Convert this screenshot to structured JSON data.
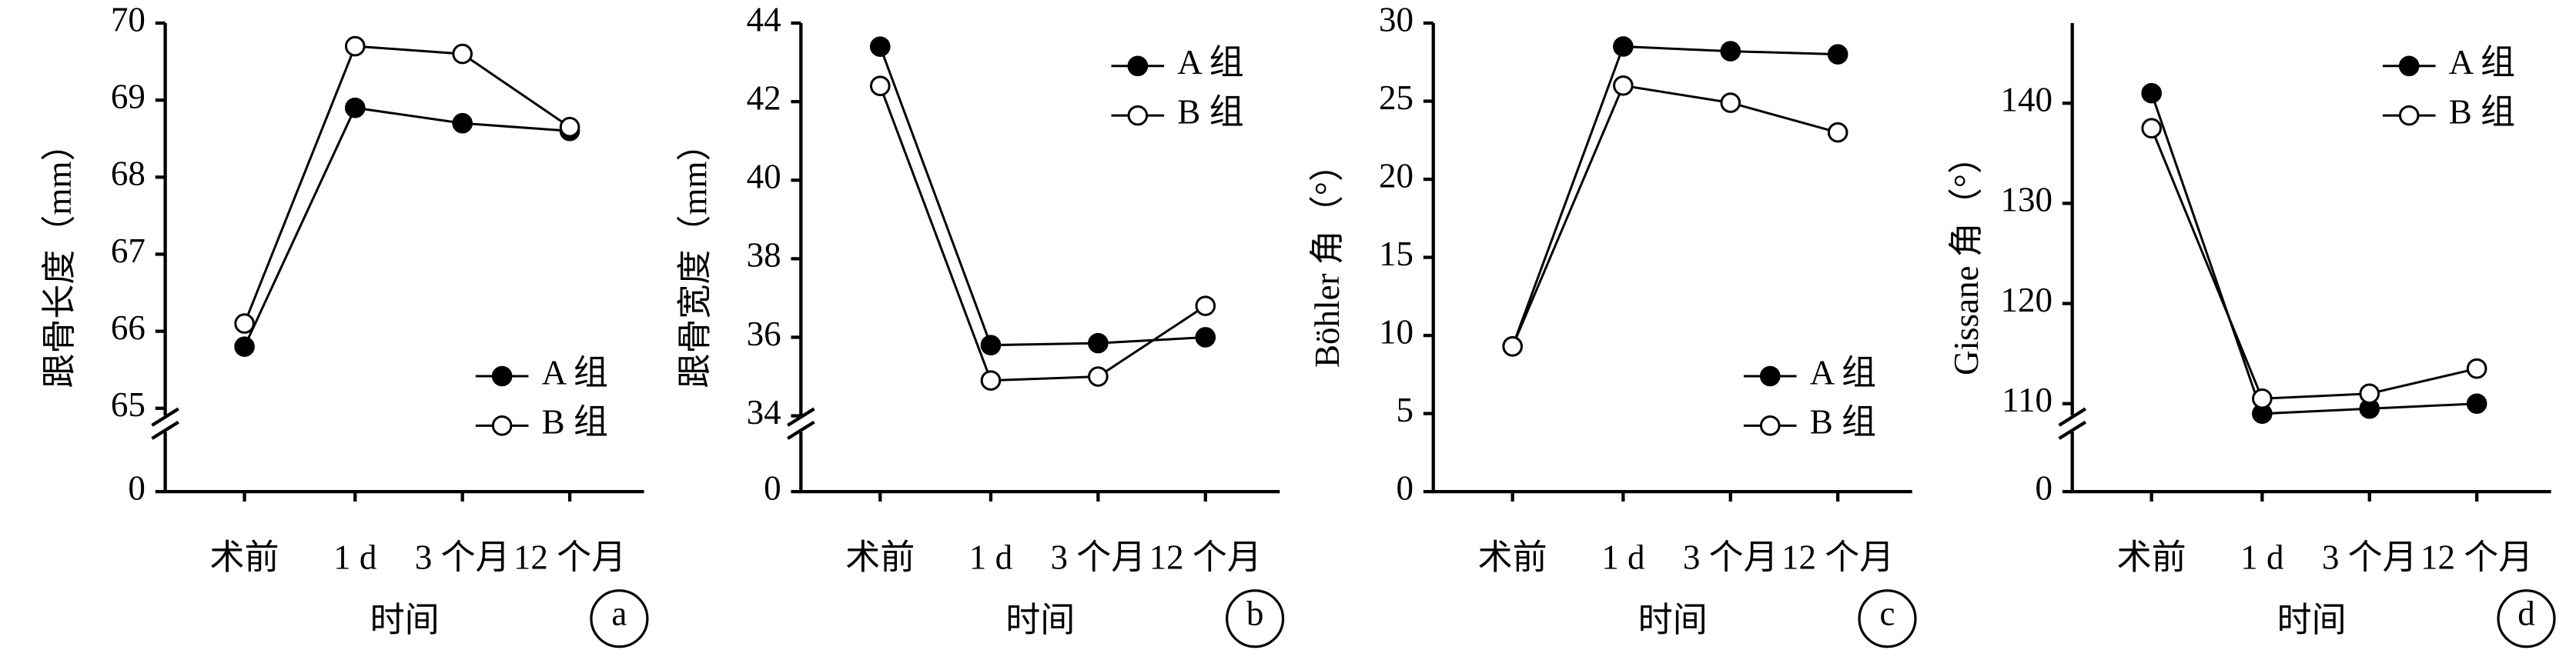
{
  "chart_data": [
    {
      "type": "line",
      "panel_label": "a",
      "xlabel": "时间",
      "ylabel": "跟骨长度（mm）",
      "categories": [
        "术前",
        "1 d",
        "3 个月",
        "12 个月"
      ],
      "series": [
        {
          "name": "A 组",
          "color": "#000000",
          "values": [
            65.8,
            68.9,
            68.7,
            68.6
          ]
        },
        {
          "name": "B 组",
          "color": "#ffffff",
          "values": [
            66.1,
            69.7,
            69.6,
            68.65
          ]
        }
      ],
      "ylim": [
        0,
        70
      ],
      "axis_break": [
        0,
        64.8
      ],
      "yticks": [
        0,
        65,
        66,
        67,
        68,
        69,
        70
      ],
      "legend": "lower right"
    },
    {
      "type": "line",
      "panel_label": "b",
      "xlabel": "时间",
      "ylabel": "跟骨宽度（mm）",
      "categories": [
        "术前",
        "1 d",
        "3 个月",
        "12 个月"
      ],
      "series": [
        {
          "name": "A 组",
          "color": "#000000",
          "values": [
            43.4,
            35.8,
            35.85,
            36.0
          ]
        },
        {
          "name": "B 组",
          "color": "#ffffff",
          "values": [
            42.4,
            34.9,
            35.0,
            36.8
          ]
        }
      ],
      "ylim": [
        0,
        44
      ],
      "axis_break": [
        0,
        33.8
      ],
      "yticks": [
        0,
        34,
        36,
        38,
        40,
        42,
        44
      ],
      "legend": "upper right"
    },
    {
      "type": "line",
      "panel_label": "c",
      "xlabel": "时间",
      "ylabel": "Böhler 角（°）",
      "categories": [
        "术前",
        "1 d",
        "3 个月",
        "12 个月"
      ],
      "series": [
        {
          "name": "A 组",
          "color": "#000000",
          "values": [
            9.3,
            28.5,
            28.2,
            28.0
          ]
        },
        {
          "name": "B 组",
          "color": "#ffffff",
          "values": [
            9.3,
            26.0,
            24.9,
            23.0
          ]
        }
      ],
      "ylim": [
        0,
        30
      ],
      "yticks": [
        0,
        5,
        10,
        15,
        20,
        25,
        30
      ],
      "legend": "lower right"
    },
    {
      "type": "line",
      "panel_label": "d",
      "xlabel": "时间",
      "ylabel": "Gissane 角（°）",
      "categories": [
        "术前",
        "1 d",
        "3 个月",
        "12 个月"
      ],
      "series": [
        {
          "name": "A 组",
          "color": "#000000",
          "values": [
            141.0,
            109.0,
            109.5,
            110.0
          ]
        },
        {
          "name": "B 组",
          "color": "#ffffff",
          "values": [
            137.5,
            110.5,
            111.0,
            113.5
          ]
        }
      ],
      "ylim": [
        0,
        148
      ],
      "axis_break": [
        0,
        108
      ],
      "yticks": [
        0,
        110,
        120,
        130,
        140
      ],
      "legend": "upper right"
    }
  ]
}
